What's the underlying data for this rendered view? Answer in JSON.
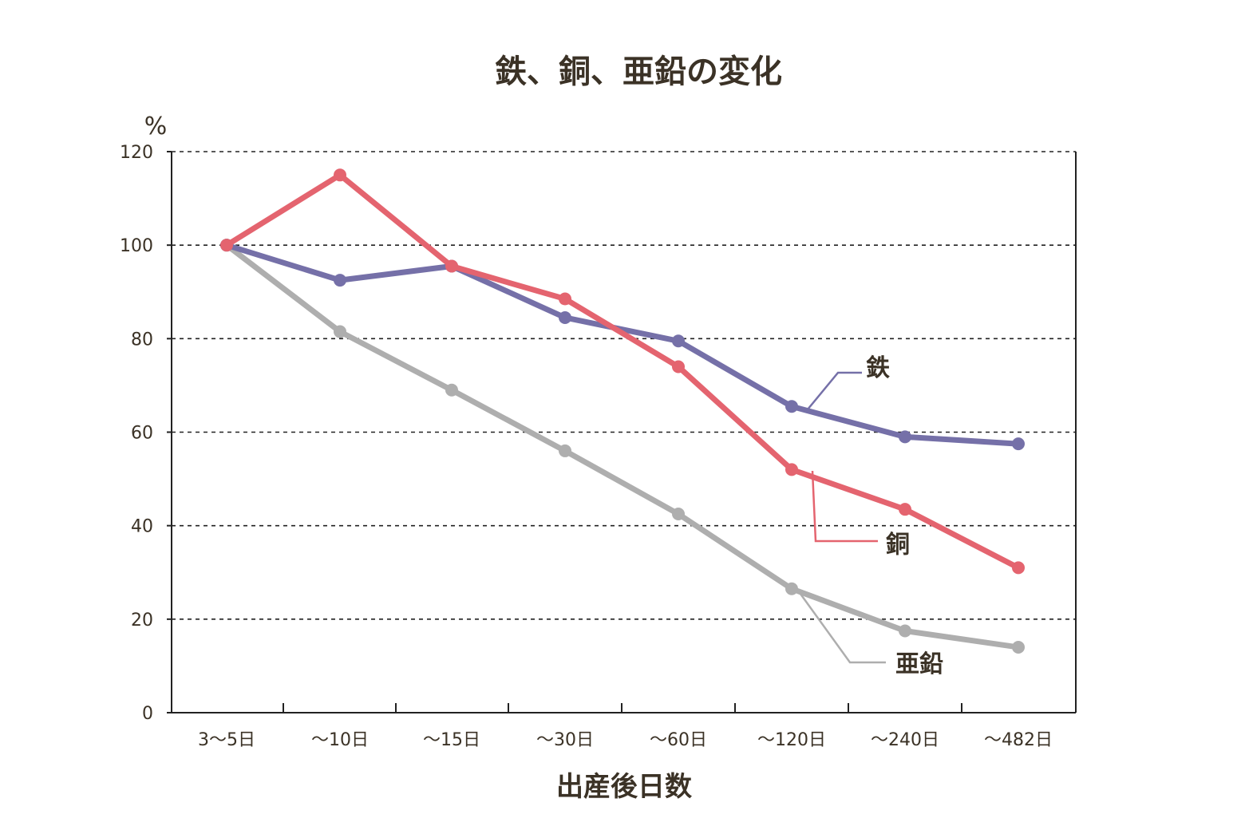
{
  "chart_data": {
    "type": "line",
    "title": "鉄、銅、亜鉛の変化",
    "unit_label": "%",
    "xlabel": "出産後日数",
    "ylabel": "%",
    "ylim": [
      0,
      120
    ],
    "yticks": [
      "0",
      "20",
      "40",
      "60",
      "80",
      "100",
      "120"
    ],
    "categories": [
      "3〜5日",
      "〜10日",
      "〜15日",
      "〜30日",
      "〜60日",
      "〜120日",
      "〜240日",
      "〜482日"
    ],
    "grid": true,
    "series": [
      {
        "name": "鉄",
        "color": "#7570a8",
        "values": [
          100,
          92.5,
          95.5,
          84.5,
          79.5,
          65.5,
          59,
          57.5
        ]
      },
      {
        "name": "銅",
        "color": "#e4646f",
        "values": [
          100,
          115,
          95.5,
          88.5,
          74,
          52,
          43.5,
          31
        ]
      },
      {
        "name": "亜鉛",
        "color": "#aeaeae",
        "values": [
          100,
          81.5,
          69,
          56,
          42.5,
          26.5,
          17.5,
          14
        ]
      }
    ]
  }
}
